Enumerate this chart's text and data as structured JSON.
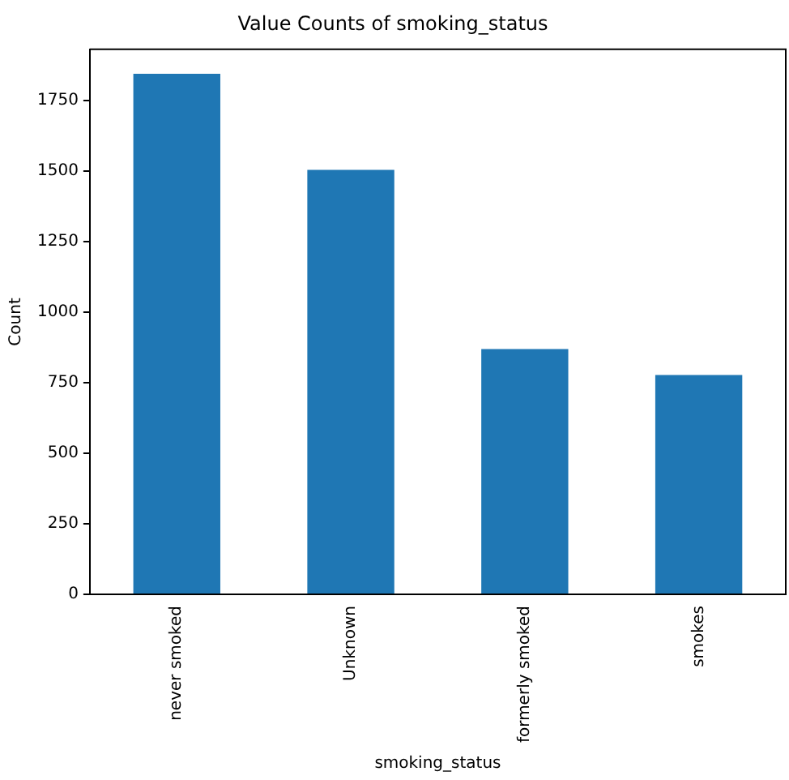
{
  "chart_data": {
    "type": "bar",
    "title": "Value Counts of smoking_status",
    "xlabel": "smoking_status",
    "ylabel": "Count",
    "categories": [
      "never smoked",
      "Unknown",
      "formerly smoked",
      "smokes"
    ],
    "values": [
      1843,
      1503,
      869,
      777
    ],
    "color": "#1f77b4",
    "ylim": [
      0,
      1930
    ],
    "yticks": [
      0,
      250,
      500,
      750,
      1000,
      1250,
      1500,
      1750
    ],
    "grid": false,
    "legend": false
  }
}
